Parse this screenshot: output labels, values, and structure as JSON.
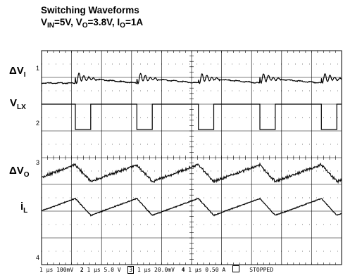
{
  "chart_data": {
    "type": "line",
    "title": "Switching Waveforms",
    "subtitle": {
      "parts": [
        {
          "main": "V",
          "sub": "IN",
          "rest": "=5V, "
        },
        {
          "main": "V",
          "sub": "O",
          "rest": "=3.8V, "
        },
        {
          "main": "I",
          "sub": "O",
          "rest": "=1A"
        }
      ]
    },
    "x_divisions": 10,
    "y_divisions": 8,
    "time_per_div": "1 μs",
    "switching_period_div": 2.05,
    "channels": [
      {
        "id": "1",
        "label_main": "ΔV",
        "label_sub": "I",
        "scale": "100mV",
        "waveform": "input ripple with switching ringing"
      },
      {
        "id": "2",
        "label_main": "V",
        "label_sub": "LX",
        "scale": "5.0 V",
        "waveform": "switch node pulse"
      },
      {
        "id": "3",
        "label_main": "ΔV",
        "label_sub": "O",
        "scale": "20.0mV",
        "waveform": "output ripple sawtooth"
      },
      {
        "id": "4",
        "label_main": "i",
        "label_sub": "L",
        "scale": "0.50 A",
        "waveform": "inductor current triangle"
      }
    ],
    "grid": true
  },
  "status": {
    "ch1": "1 μs 100mV",
    "ch2_num": "2",
    "ch2": "1 μs 5.0 V",
    "ch3_num": "3",
    "ch3": "1 μs 20.0mV",
    "ch4_num": "4",
    "ch4": "1 μs 0.50 A",
    "state": "STOPPED"
  },
  "markers": {
    "ch1": "1",
    "ch2": "2",
    "ch3": "3",
    "ch4": "4"
  },
  "colors": {
    "trace": "#000000",
    "grid": "#000000",
    "background": "#ffffff"
  }
}
